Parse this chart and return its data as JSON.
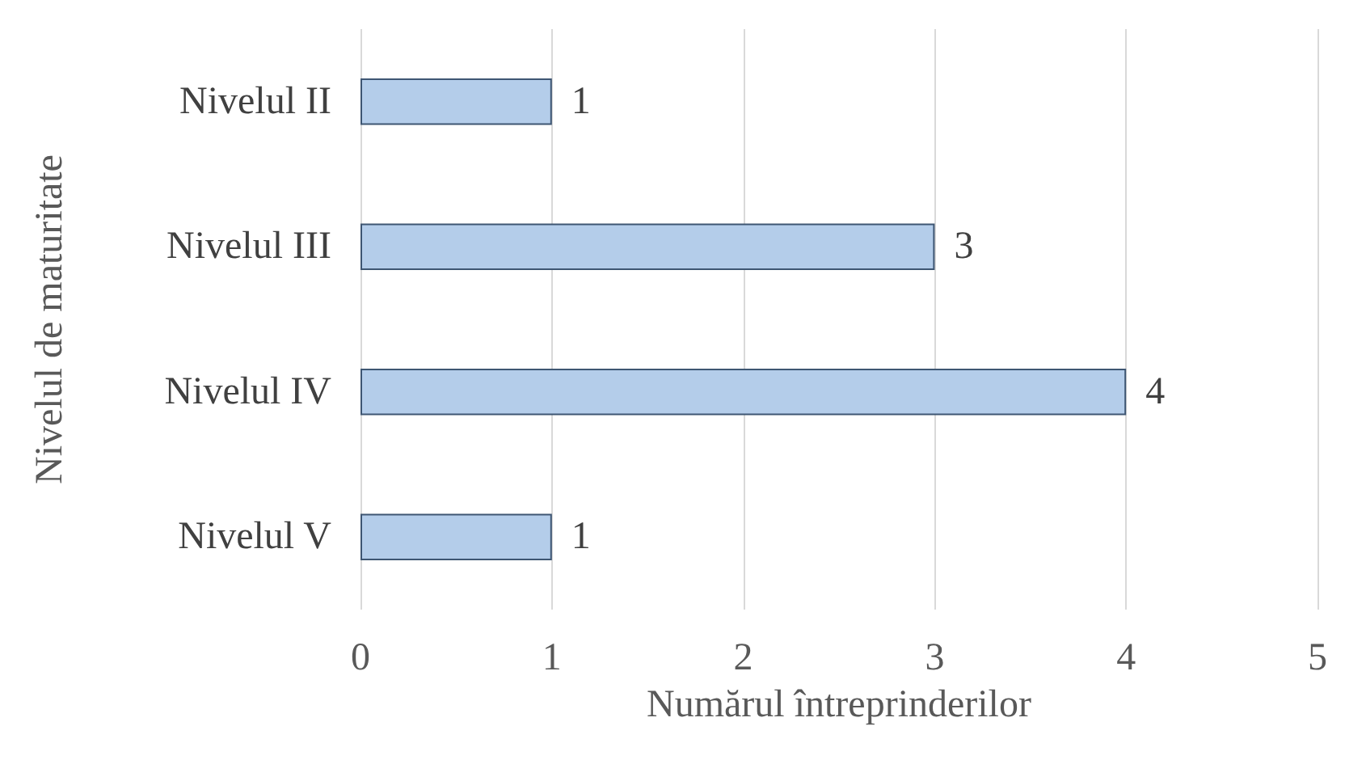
{
  "chart_data": {
    "type": "bar",
    "orientation": "horizontal",
    "xlabel": "Numărul întreprinderilor",
    "ylabel": "Nivelul de maturitate",
    "categories": [
      "Nivelul II",
      "Nivelul III",
      "Nivelul IV",
      "Nivelul V"
    ],
    "values": [
      1,
      3,
      4,
      1
    ],
    "color": "#b4cdea",
    "xlim": [
      0,
      5
    ],
    "xticks": [
      0,
      1,
      2,
      3,
      4,
      5
    ],
    "grid": "x",
    "data_labels": true
  }
}
